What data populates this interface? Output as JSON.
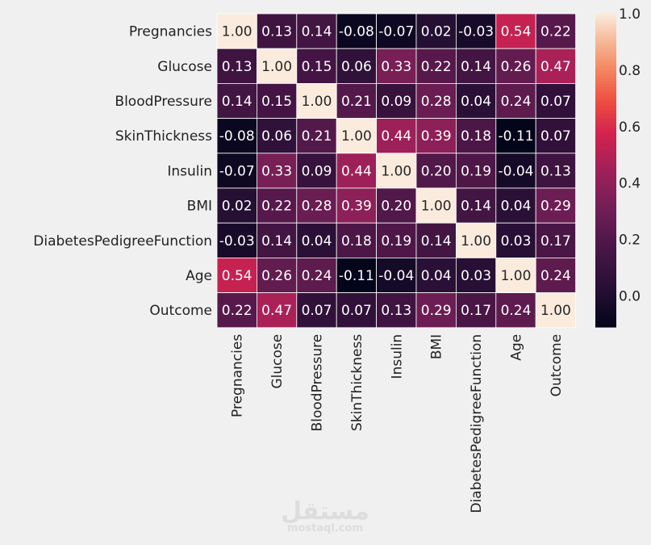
{
  "chart_data": {
    "type": "heatmap",
    "labels": [
      "Pregnancies",
      "Glucose",
      "BloodPressure",
      "SkinThickness",
      "Insulin",
      "BMI",
      "DiabetesPedigreeFunction",
      "Age",
      "Outcome"
    ],
    "values": [
      [
        1.0,
        0.13,
        0.14,
        -0.08,
        -0.07,
        0.02,
        -0.03,
        0.54,
        0.22
      ],
      [
        0.13,
        1.0,
        0.15,
        0.06,
        0.33,
        0.22,
        0.14,
        0.26,
        0.47
      ],
      [
        0.14,
        0.15,
        1.0,
        0.21,
        0.09,
        0.28,
        0.04,
        0.24,
        0.07
      ],
      [
        -0.08,
        0.06,
        0.21,
        1.0,
        0.44,
        0.39,
        0.18,
        -0.11,
        0.07
      ],
      [
        -0.07,
        0.33,
        0.09,
        0.44,
        1.0,
        0.2,
        0.19,
        -0.04,
        0.13
      ],
      [
        0.02,
        0.22,
        0.28,
        0.39,
        0.2,
        1.0,
        0.14,
        0.04,
        0.29
      ],
      [
        -0.03,
        0.14,
        0.04,
        0.18,
        0.19,
        0.14,
        1.0,
        0.03,
        0.17
      ],
      [
        0.54,
        0.26,
        0.24,
        -0.11,
        -0.04,
        0.04,
        0.03,
        1.0,
        0.24
      ],
      [
        0.22,
        0.47,
        0.07,
        0.07,
        0.13,
        0.29,
        0.17,
        0.24,
        1.0
      ]
    ],
    "annotation_format": "2 decimals",
    "colormap": "rocket",
    "colorbar": {
      "range": [
        -0.11,
        1.0
      ],
      "ticks": [
        0.0,
        0.2,
        0.4,
        0.6,
        0.8,
        1.0
      ],
      "tick_labels": [
        "0.0",
        "0.2",
        "0.4",
        "0.6",
        "0.8",
        "1.0"
      ]
    },
    "linecolor": "#ffffff"
  },
  "watermark": {
    "arabic_text": "مستقل",
    "latin_text": "mostaql.com"
  },
  "colors": {
    "background": "#f0f0f0",
    "text": "#222222",
    "watermark": "#dddddd"
  }
}
